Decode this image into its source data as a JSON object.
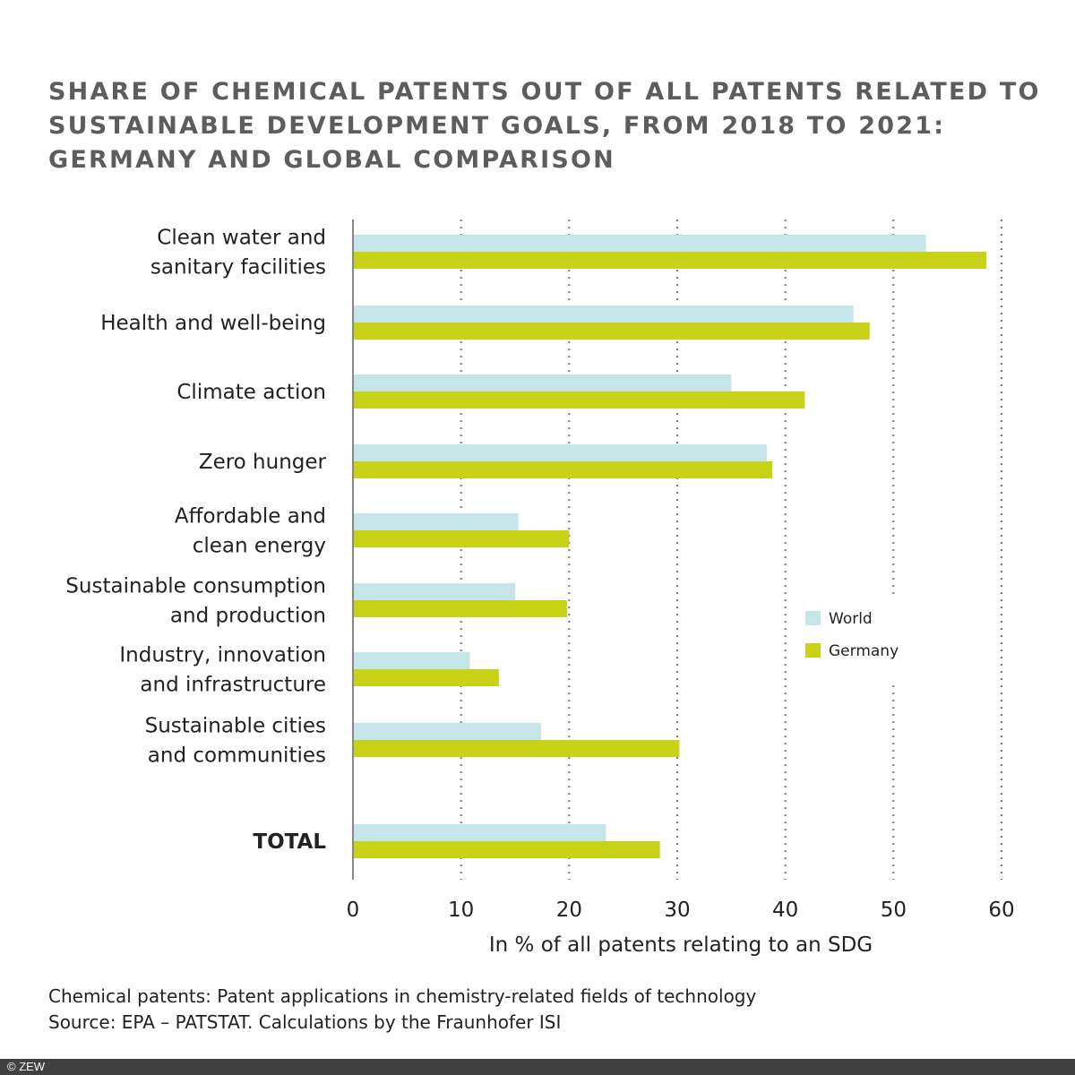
{
  "chart_data": {
    "type": "bar",
    "orientation": "horizontal",
    "title_lines": [
      "SHARE OF CHEMICAL PATENTS OUT OF ALL PATENTS RELATED TO",
      "SUSTAINABLE DEVELOPMENT GOALS, FROM 2018 TO 2021:",
      "GERMANY AND GLOBAL COMPARISON"
    ],
    "categories": [
      [
        "Clean water and",
        "sanitary facilities"
      ],
      [
        "Health and well-being"
      ],
      [
        "Climate action"
      ],
      [
        "Zero hunger"
      ],
      [
        "Affordable and",
        "clean energy"
      ],
      [
        "Sustainable consumption",
        "and production"
      ],
      [
        "Industry, innovation",
        "and infrastructure"
      ],
      [
        "Sustainable cities",
        "and communities"
      ],
      [
        "TOTAL"
      ]
    ],
    "series": [
      {
        "name": "World",
        "color": "#c5e5e9",
        "values": [
          53.0,
          46.3,
          35.0,
          38.3,
          15.3,
          15.0,
          10.8,
          17.4,
          23.4
        ]
      },
      {
        "name": "Germany",
        "color": "#c8d317",
        "values": [
          58.6,
          47.8,
          41.8,
          38.8,
          20.0,
          19.8,
          13.5,
          30.2,
          28.4
        ]
      }
    ],
    "xlabel": "In % of all patents relating to an SDG",
    "xlim": [
      0,
      60
    ],
    "xticks": [
      0,
      10,
      20,
      30,
      40,
      50,
      60
    ],
    "grid": "vertical dotted",
    "legend_placement": "right"
  },
  "footnotes": [
    "Chemical patents: Patent applications in chemistry-related fields of technology",
    "Source: EPA – PATSTAT. Calculations by the Fraunhofer ISI"
  ],
  "copyright": "© ZEW"
}
